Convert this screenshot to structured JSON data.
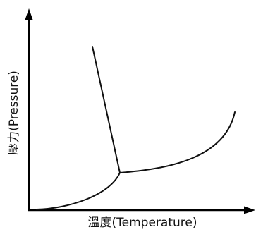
{
  "diagram": {
    "x_axis_label": "溫度(Temperature)",
    "y_axis_label": "壓力(Pressure)",
    "curves": [
      "fusion-curve",
      "vaporization-curve",
      "sublimation-curve"
    ]
  }
}
